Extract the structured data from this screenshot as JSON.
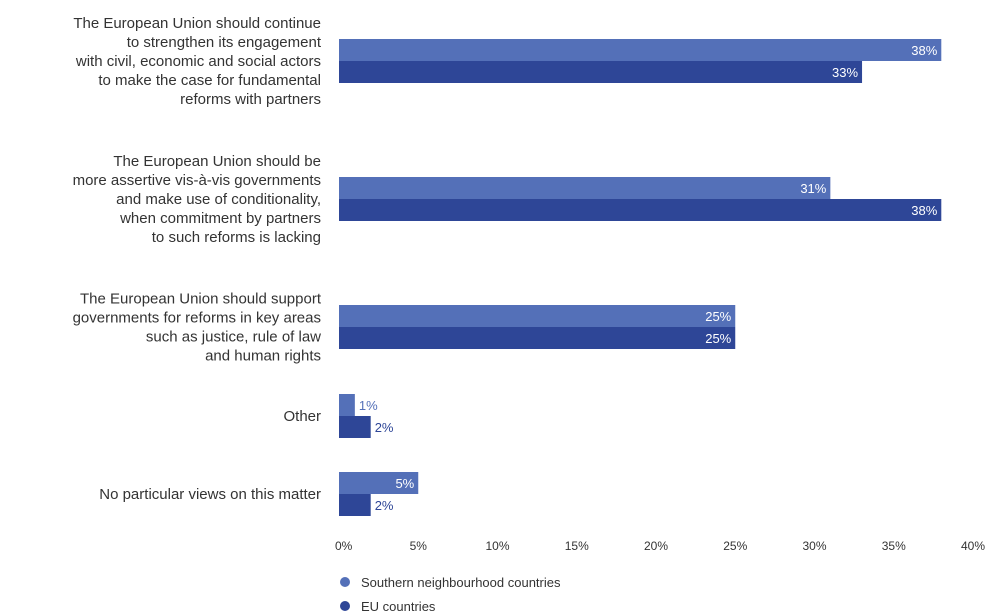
{
  "chart_data": {
    "type": "bar",
    "orientation": "horizontal",
    "categories": [
      [
        "The European Union should continue",
        "to strengthen its engagement",
        "with civil, economic and social actors",
        "to make the case for fundamental",
        "reforms with partners"
      ],
      [
        "The European Union should be",
        "more assertive vis-à-vis governments",
        "and make use of conditionality,",
        "when commitment by partners",
        "to such reforms is lacking"
      ],
      [
        "The European Union should support",
        "governments for reforms in key areas",
        "such as justice, rule of law",
        "and human rights"
      ],
      [
        "Other"
      ],
      [
        "No particular views on this matter"
      ]
    ],
    "series": [
      {
        "name": "Southern neighbourhood countries",
        "color": "#5470b8",
        "values": [
          38,
          31,
          25,
          1,
          5
        ],
        "labels": [
          "38%",
          "31%",
          "25%",
          "1%",
          "5%"
        ]
      },
      {
        "name": "EU countries",
        "color": "#2e4697",
        "values": [
          33,
          38,
          25,
          2,
          2
        ],
        "labels": [
          "33%",
          "38%",
          "25%",
          "2%",
          "2%"
        ]
      }
    ],
    "xlim": [
      0,
      40
    ],
    "xticks": [
      "0%",
      "5%",
      "10%",
      "15%",
      "20%",
      "25%",
      "30%",
      "35%",
      "40%"
    ],
    "grid": false,
    "legend_position": "bottom-left"
  }
}
